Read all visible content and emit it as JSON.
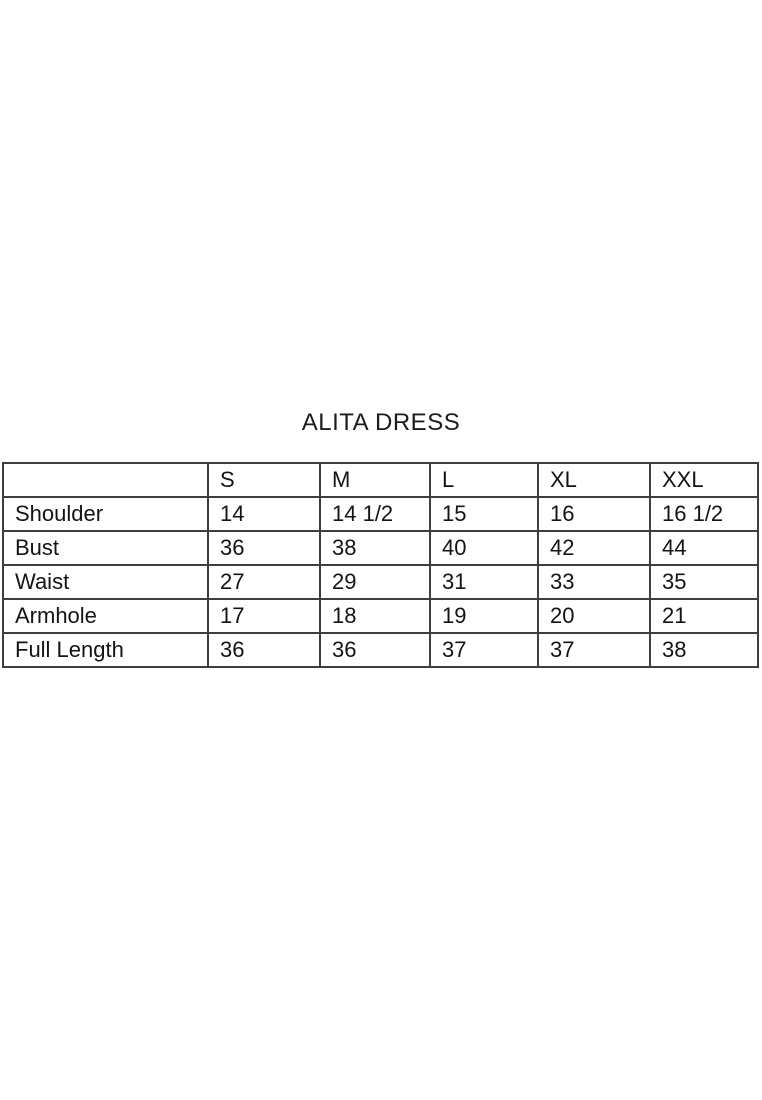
{
  "title": "ALITA DRESS",
  "size_table": {
    "columns": [
      "",
      "S",
      "M",
      "L",
      "XL",
      "XXL"
    ],
    "rows": [
      {
        "label": "Shoulder",
        "values": [
          "14",
          "14 1/2",
          "15",
          "16",
          "16 1/2"
        ]
      },
      {
        "label": "Bust",
        "values": [
          "36",
          "38",
          "40",
          "42",
          "44"
        ]
      },
      {
        "label": "Waist",
        "values": [
          "27",
          "29",
          "31",
          "33",
          "35"
        ]
      },
      {
        "label": "Armhole",
        "values": [
          "17",
          "18",
          "19",
          "20",
          "21"
        ]
      },
      {
        "label": "Full Length",
        "values": [
          "36",
          "36",
          "37",
          "37",
          "38"
        ]
      }
    ]
  },
  "colors": {
    "background": "#ffffff",
    "text": "#141414",
    "table_border": "#3e3e3e"
  }
}
